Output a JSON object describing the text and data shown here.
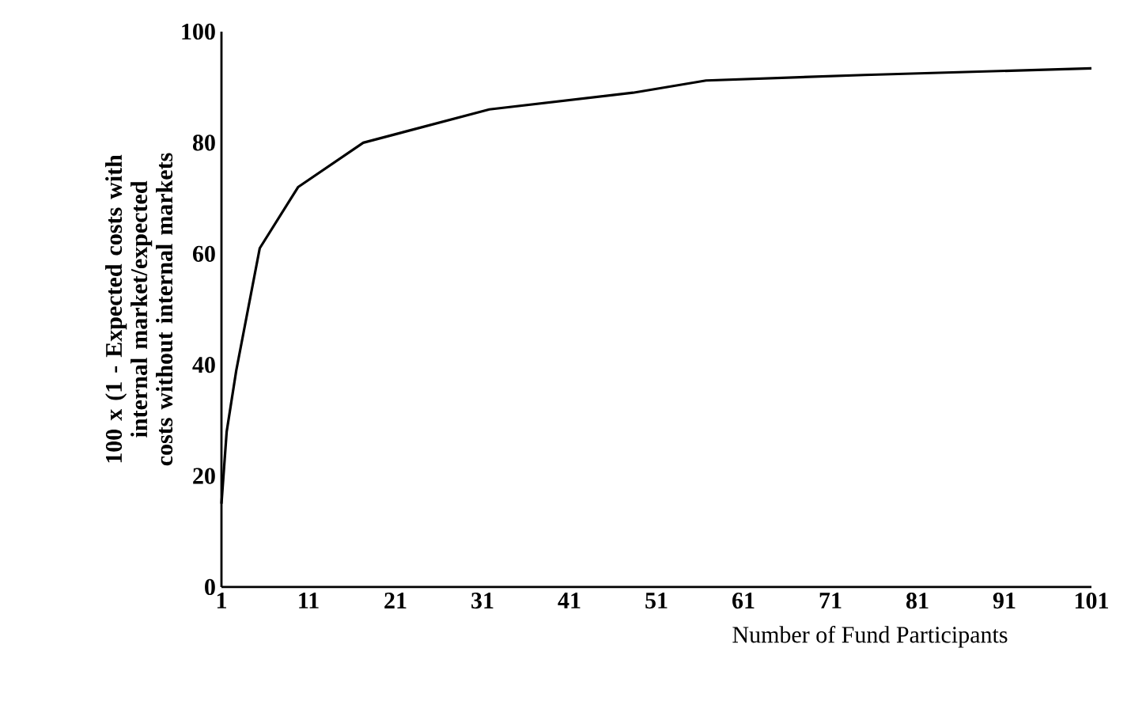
{
  "chart_data": {
    "type": "line",
    "xlabel": "Number of Fund Participants",
    "ylabel": "100 x (1 - Expected costs with internal market/expected costs without internal markets",
    "x": [
      1,
      1.6,
      2.7,
      5.4,
      9.8,
      17.3,
      31.8,
      48.3,
      56.7,
      74.9,
      101
    ],
    "series": [
      {
        "color": "#000000",
        "values": [
          15,
          28,
          39,
          61,
          72,
          80,
          86,
          89,
          91.2,
          92.2,
          93.4
        ]
      }
    ],
    "xlim": [
      1,
      101
    ],
    "ylim": [
      0,
      100
    ],
    "xticks": [
      1,
      11,
      21,
      31,
      41,
      51,
      61,
      71,
      81,
      91,
      101
    ],
    "yticks": [
      0,
      20,
      40,
      60,
      80,
      100
    ],
    "grid": false,
    "marker": "none",
    "line_style": "solid"
  }
}
